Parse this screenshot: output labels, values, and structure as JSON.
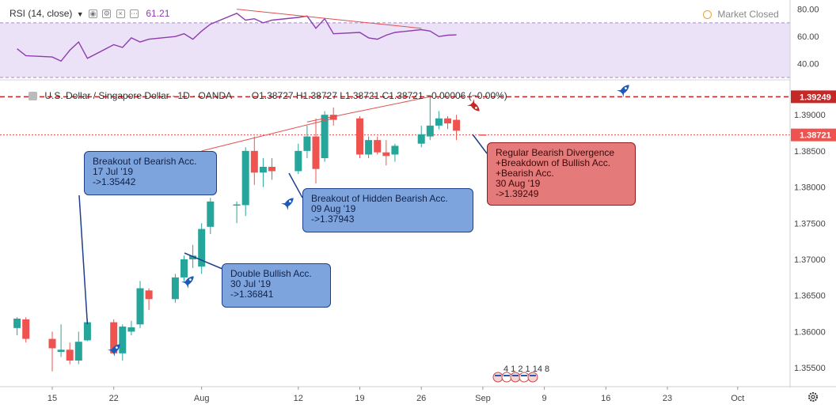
{
  "rsi_legend": {
    "label": "RSI (14, close)",
    "value": "61.21"
  },
  "market_status": "Market Closed",
  "main_legend": {
    "title": "U.S. Dollar / Singapore Dollar · 1D · OANDA",
    "ohlc": "O1.38727  H1.38727  L1.38721  C1.38721  −0.00006 (−0.00%)"
  },
  "price_badges": {
    "upper": "1.39249",
    "lower": "1.38721"
  },
  "callouts": {
    "breakout_bearish": "Breakout of Bearish Acc.\n17 Jul '19\n->1.35442",
    "double_bullish": "Double Bullish Acc.\n30 Jul '19\n->1.36841",
    "hidden_bearish": "Breakout of Hidden Bearish Acc.\n09 Aug '19\n->1.37943",
    "regular_bearish": "Regular Bearish Divergence\n+Breakdown of Bullish Acc.\n+Bearish Acc.\n30 Aug '19\n->1.39249"
  },
  "events_label": "4 1 2 1 14 8",
  "colors": {
    "up": "#26a69a",
    "down": "#ef5350",
    "rsi_line": "#8e3cb0",
    "rsi_band": "#ece2f7",
    "trend": "#e05050"
  },
  "chart_data": [
    {
      "type": "line",
      "title": "RSI (14, close)",
      "ylim": [
        30,
        85
      ],
      "y_ticks": [
        "80.00",
        "60.00",
        "40.00"
      ],
      "band": [
        30,
        70
      ],
      "x": [
        "Jul 11",
        "Jul 12",
        "Jul 15",
        "Jul 16",
        "Jul 17",
        "Jul 18",
        "Jul 19",
        "Jul 22",
        "Jul 23",
        "Jul 24",
        "Jul 25",
        "Jul 26",
        "Jul 29",
        "Jul 30",
        "Jul 31",
        "Aug 1",
        "Aug 2",
        "Aug 5",
        "Aug 6",
        "Aug 7",
        "Aug 8",
        "Aug 9",
        "Aug 12",
        "Aug 13",
        "Aug 14",
        "Aug 15",
        "Aug 16",
        "Aug 19",
        "Aug 20",
        "Aug 21",
        "Aug 22",
        "Aug 23",
        "Aug 26",
        "Aug 27",
        "Aug 28",
        "Aug 29",
        "Aug 30"
      ],
      "values": [
        51,
        46,
        45,
        42,
        50,
        56,
        44,
        54,
        52,
        59,
        56,
        58,
        60,
        62,
        58,
        64,
        69,
        77,
        72,
        73,
        70,
        72,
        74,
        75,
        66,
        73,
        62,
        63,
        59,
        58,
        61,
        63,
        65,
        64,
        60,
        61,
        61.21
      ],
      "divergence_line": {
        "from": [
          "Aug 5",
          80
        ],
        "to": [
          "Aug 26",
          66
        ]
      }
    },
    {
      "type": "candlestick",
      "title": "U.S. Dollar / Singapore Dollar · 1D · OANDA",
      "ylim": [
        1.3525,
        1.3945
      ],
      "y_ticks": [
        "1.39000",
        "1.38500",
        "1.38000",
        "1.37500",
        "1.37000",
        "1.36500",
        "1.36000",
        "1.35500"
      ],
      "x_ticks": [
        "15",
        "22",
        "Aug",
        "12",
        "19",
        "26",
        "Sep",
        "9",
        "16",
        "23",
        "Oct"
      ],
      "x_tick_dates": [
        "Jul 15",
        "Jul 22",
        "Aug 1",
        "Aug 12",
        "Aug 19",
        "Aug 26",
        "Sep 2",
        "Sep 9",
        "Sep 16",
        "Sep 23",
        "Oct 1"
      ],
      "candles": [
        {
          "date": "Jul 11",
          "open": 1.3605,
          "high": 1.362,
          "low": 1.3595,
          "close": 1.3618
        },
        {
          "date": "Jul 12",
          "open": 1.3617,
          "high": 1.362,
          "low": 1.3585,
          "close": 1.359
        },
        {
          "date": "Jul 15",
          "open": 1.359,
          "high": 1.36,
          "low": 1.3545,
          "close": 1.3577
        },
        {
          "date": "Jul 16",
          "open": 1.3572,
          "high": 1.361,
          "low": 1.3565,
          "close": 1.3575
        },
        {
          "date": "Jul 17",
          "open": 1.3575,
          "high": 1.3585,
          "low": 1.3555,
          "close": 1.356
        },
        {
          "date": "Jul 18",
          "open": 1.356,
          "high": 1.36,
          "low": 1.3555,
          "close": 1.3586
        },
        {
          "date": "Jul 19",
          "open": 1.3588,
          "high": 1.3618,
          "low": 1.3587,
          "close": 1.3613
        },
        {
          "date": "Jul 22",
          "open": 1.3613,
          "high": 1.3617,
          "low": 1.357,
          "close": 1.357
        },
        {
          "date": "Jul 23",
          "open": 1.357,
          "high": 1.361,
          "low": 1.356,
          "close": 1.3607
        },
        {
          "date": "Jul 24",
          "open": 1.36,
          "high": 1.3615,
          "low": 1.3595,
          "close": 1.3606
        },
        {
          "date": "Jul 25",
          "open": 1.361,
          "high": 1.367,
          "low": 1.3605,
          "close": 1.366
        },
        {
          "date": "Jul 26",
          "open": 1.3657,
          "high": 1.366,
          "low": 1.363,
          "close": 1.3645
        },
        {
          "date": "Jul 29",
          "open": 1.3645,
          "high": 1.368,
          "low": 1.364,
          "close": 1.3675
        },
        {
          "date": "Jul 30",
          "open": 1.3675,
          "high": 1.3705,
          "low": 1.367,
          "close": 1.37
        },
        {
          "date": "Jul 31",
          "open": 1.37,
          "high": 1.372,
          "low": 1.3688,
          "close": 1.3705
        },
        {
          "date": "Aug 1",
          "open": 1.369,
          "high": 1.375,
          "low": 1.368,
          "close": 1.3742
        },
        {
          "date": "Aug 2",
          "open": 1.3745,
          "high": 1.3785,
          "low": 1.3735,
          "close": 1.378
        },
        {
          "date": "Aug 5",
          "open": 1.3776,
          "high": 1.378,
          "low": 1.375,
          "close": 1.3776
        },
        {
          "date": "Aug 6",
          "open": 1.3775,
          "high": 1.3855,
          "low": 1.376,
          "close": 1.385
        },
        {
          "date": "Aug 7",
          "open": 1.385,
          "high": 1.387,
          "low": 1.3803,
          "close": 1.382
        },
        {
          "date": "Aug 8",
          "open": 1.382,
          "high": 1.384,
          "low": 1.38,
          "close": 1.3828
        },
        {
          "date": "Aug 9",
          "open": 1.3828,
          "high": 1.384,
          "low": 1.381,
          "close": 1.3822
        },
        {
          "date": "Aug 12",
          "open": 1.3822,
          "high": 1.386,
          "low": 1.3818,
          "close": 1.385
        },
        {
          "date": "Aug 13",
          "open": 1.385,
          "high": 1.3885,
          "low": 1.384,
          "close": 1.387
        },
        {
          "date": "Aug 14",
          "open": 1.387,
          "high": 1.3895,
          "low": 1.3805,
          "close": 1.3825
        },
        {
          "date": "Aug 15",
          "open": 1.384,
          "high": 1.3905,
          "low": 1.3835,
          "close": 1.39
        },
        {
          "date": "Aug 16",
          "open": 1.39,
          "high": 1.391,
          "low": 1.3885,
          "close": 1.3893
        },
        {
          "date": "Aug 19",
          "open": 1.3895,
          "high": 1.3898,
          "low": 1.384,
          "close": 1.3845
        },
        {
          "date": "Aug 20",
          "open": 1.3845,
          "high": 1.387,
          "low": 1.384,
          "close": 1.3865
        },
        {
          "date": "Aug 21",
          "open": 1.3865,
          "high": 1.387,
          "low": 1.3845,
          "close": 1.3848
        },
        {
          "date": "Aug 22",
          "open": 1.3848,
          "high": 1.3865,
          "low": 1.383,
          "close": 1.3843
        },
        {
          "date": "Aug 23",
          "open": 1.3845,
          "high": 1.386,
          "low": 1.3835,
          "close": 1.3857
        },
        {
          "date": "Aug 26",
          "open": 1.386,
          "high": 1.3885,
          "low": 1.3855,
          "close": 1.3873
        },
        {
          "date": "Aug 27",
          "open": 1.387,
          "high": 1.3925,
          "low": 1.3865,
          "close": 1.3885
        },
        {
          "date": "Aug 28",
          "open": 1.3885,
          "high": 1.3905,
          "low": 1.388,
          "close": 1.3895
        },
        {
          "date": "Aug 29",
          "open": 1.3895,
          "high": 1.3898,
          "low": 1.388,
          "close": 1.3888
        },
        {
          "date": "Aug 30",
          "open": 1.3893,
          "high": 1.39,
          "low": 1.3865,
          "close": 1.3878
        },
        {
          "date": "Sep 2",
          "open": 1.38727,
          "high": 1.38727,
          "low": 1.38721,
          "close": 1.38721
        }
      ],
      "horizontal_lines": [
        1.39249,
        1.38721
      ],
      "trend_lines": [
        {
          "from": [
            "Aug 1",
            1.385
          ],
          "to": [
            "Aug 16",
            1.3895
          ]
        },
        {
          "from": [
            "Aug 13",
            1.389
          ],
          "to": [
            "Aug 27",
            1.3925
          ]
        }
      ]
    }
  ]
}
